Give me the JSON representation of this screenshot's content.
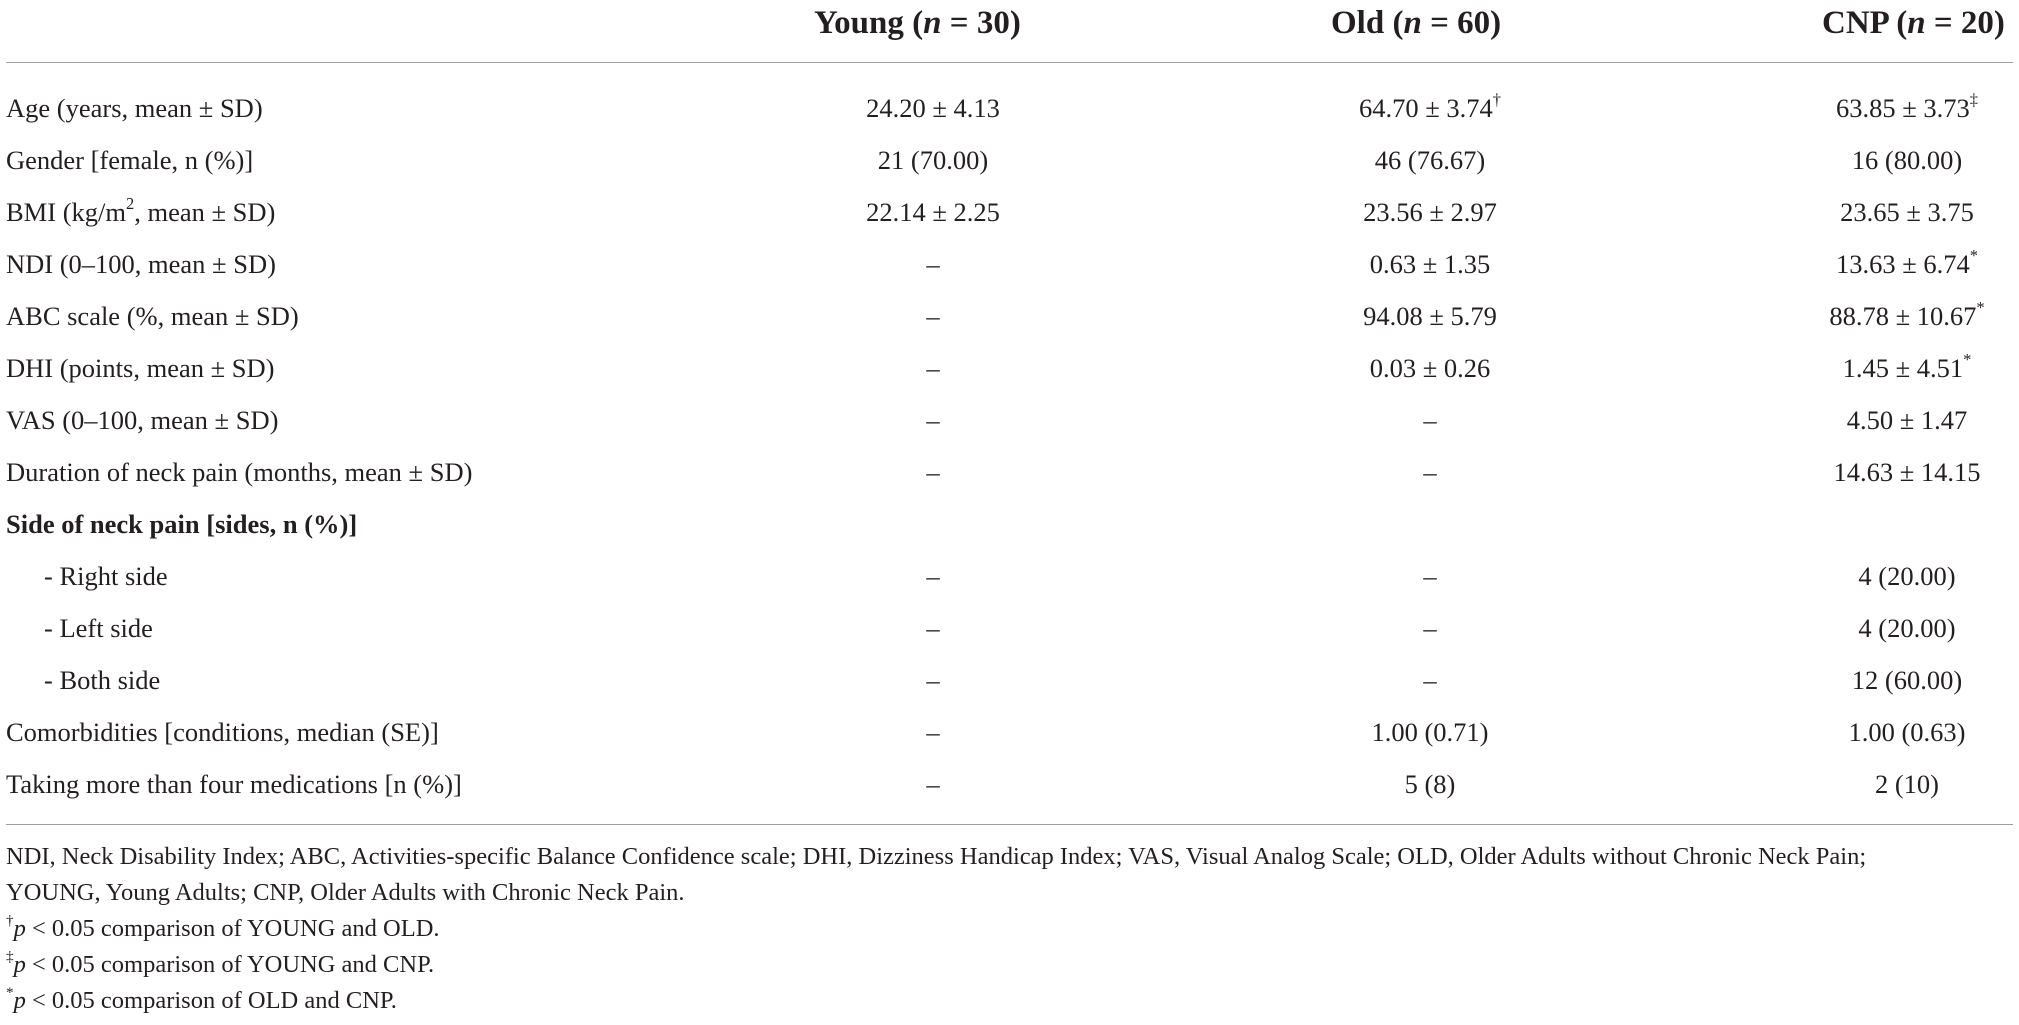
{
  "table": {
    "columns": [
      {
        "name": "Young",
        "n_label": "n",
        "n_value": "30"
      },
      {
        "name": "Old",
        "n_label": "n",
        "n_value": "60"
      },
      {
        "name": "CNP",
        "n_label": "n",
        "n_value": "20"
      }
    ],
    "rows": [
      {
        "label": "Age (years, mean ± SD)",
        "values": [
          "24.20 ± 4.13",
          "64.70 ± 3.74",
          "63.85 ± 3.73"
        ],
        "marks": [
          "",
          "†",
          "‡"
        ]
      },
      {
        "label": "Gender [female, n (%)]",
        "values": [
          "21 (70.00)",
          "46 (76.67)",
          "16 (80.00)"
        ],
        "marks": [
          "",
          "",
          ""
        ]
      },
      {
        "label_pre": "BMI (kg/m",
        "label_sup": "2",
        "label_post": ", mean ± SD)",
        "values": [
          "22.14 ± 2.25",
          "23.56 ± 2.97",
          "23.65 ± 3.75"
        ],
        "marks": [
          "",
          "",
          ""
        ]
      },
      {
        "label": "NDI (0–100, mean ± SD)",
        "values": [
          "–",
          "0.63 ± 1.35",
          "13.63 ± 6.74"
        ],
        "marks": [
          "",
          "",
          "*"
        ]
      },
      {
        "label": "ABC scale (%, mean ± SD)",
        "values": [
          "–",
          "94.08 ± 5.79",
          "88.78 ± 10.67"
        ],
        "marks": [
          "",
          "",
          "*"
        ]
      },
      {
        "label": "DHI (points, mean ± SD)",
        "values": [
          "–",
          "0.03 ± 0.26",
          "1.45 ± 4.51"
        ],
        "marks": [
          "",
          "",
          "*"
        ]
      },
      {
        "label": "VAS (0–100, mean ± SD)",
        "values": [
          "–",
          "–",
          "4.50 ± 1.47"
        ],
        "marks": [
          "",
          "",
          ""
        ]
      },
      {
        "label": "Duration of neck pain (months, mean ± SD)",
        "values": [
          "–",
          "–",
          "14.63 ± 14.15"
        ],
        "marks": [
          "",
          "",
          ""
        ]
      },
      {
        "label": "Side of neck pain [sides, n (%)]",
        "values": [
          "",
          "",
          ""
        ],
        "marks": [
          "",
          "",
          ""
        ]
      },
      {
        "label": "- Right side",
        "values": [
          "–",
          "–",
          "4 (20.00)"
        ],
        "marks": [
          "",
          "",
          ""
        ]
      },
      {
        "label": "- Left side",
        "values": [
          "–",
          "–",
          "4 (20.00)"
        ],
        "marks": [
          "",
          "",
          ""
        ]
      },
      {
        "label": "- Both side",
        "values": [
          "–",
          "–",
          "12 (60.00)"
        ],
        "marks": [
          "",
          "",
          ""
        ]
      },
      {
        "label": "Comorbidities [conditions, median (SE)]",
        "values": [
          "–",
          "1.00 (0.71)",
          "1.00 (0.63)"
        ],
        "marks": [
          "",
          "",
          ""
        ]
      },
      {
        "label": "Taking more than four medications [n (%)]",
        "values": [
          "–",
          "5 (8)",
          "2 (10)"
        ],
        "marks": [
          "",
          "",
          ""
        ]
      }
    ]
  },
  "footnotes": {
    "abbrev_line1": "NDI, Neck Disability Index; ABC, Activities-specific Balance Confidence scale; DHI, Dizziness Handicap Index; VAS, Visual Analog Scale; OLD, Older Adults without Chronic Neck Pain;",
    "abbrev_line2": "YOUNG, Young Adults; CNP, Older Adults with Chronic Neck Pain.",
    "notes": [
      {
        "mark": "†",
        "p": "p",
        "text": " < 0.05 comparison of YOUNG and OLD."
      },
      {
        "mark": "‡",
        "p": "p",
        "text": " < 0.05 comparison of YOUNG and CNP."
      },
      {
        "mark": "*",
        "p": "p",
        "text": " < 0.05 comparison of OLD and CNP."
      }
    ]
  }
}
